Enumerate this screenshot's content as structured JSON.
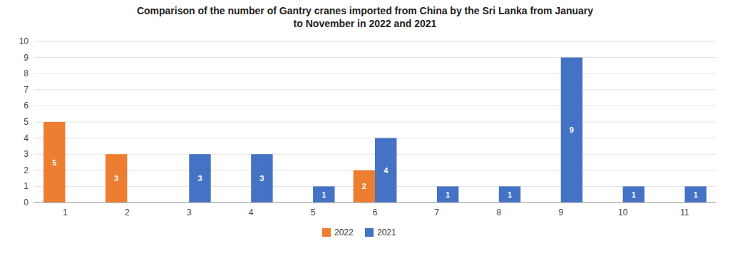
{
  "chart_data": {
    "type": "bar",
    "title": "Comparison of the number of Gantry cranes imported from China by the Sri Lanka from January\nto November in 2022 and 2021",
    "categories": [
      "1",
      "2",
      "3",
      "4",
      "5",
      "6",
      "7",
      "8",
      "9",
      "10",
      "11"
    ],
    "series": [
      {
        "name": "2022",
        "color": "#ED7D31",
        "values": [
          5,
          3,
          0,
          0,
          0,
          2,
          0,
          0,
          0,
          0,
          0
        ]
      },
      {
        "name": "2021",
        "color": "#4472C4",
        "values": [
          0,
          0,
          3,
          3,
          1,
          4,
          1,
          1,
          9,
          1,
          1
        ]
      }
    ],
    "ylim": [
      0,
      10
    ],
    "yticks": [
      0,
      1,
      2,
      3,
      4,
      5,
      6,
      7,
      8,
      9,
      10
    ],
    "grid": true,
    "data_labels": true,
    "legend": "bottom"
  }
}
